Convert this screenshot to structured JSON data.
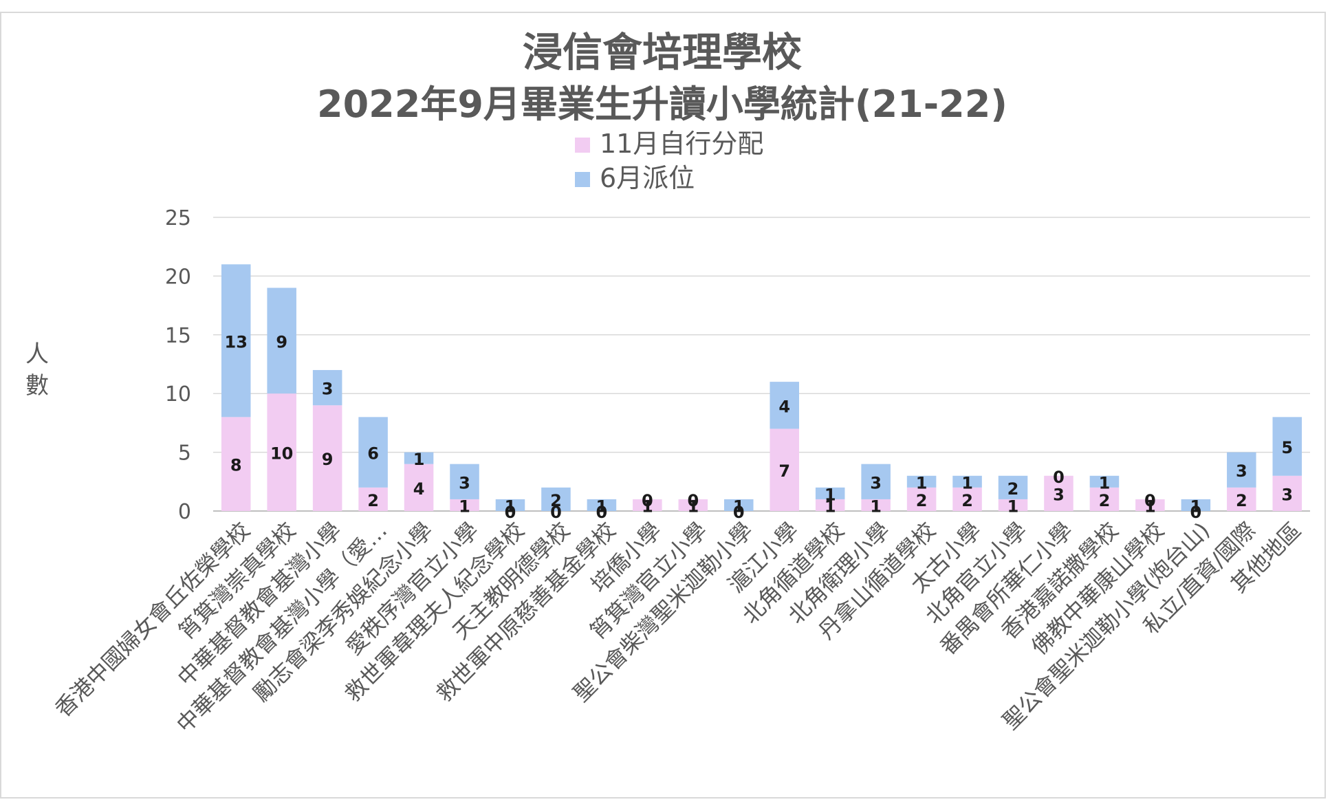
{
  "chart_data": {
    "type": "bar",
    "stacked": true,
    "title_line1": "浸信會培理學校",
    "title_line2": "2022年9月畢業生升讀小學統計(21-22)",
    "ylabel_chars": [
      "人",
      "數"
    ],
    "ylim": [
      0,
      25
    ],
    "yticks": [
      0,
      5,
      10,
      15,
      20,
      25
    ],
    "grid": true,
    "legend_position": "top",
    "categories": [
      "香港中國婦女會丘佐榮學校",
      "筲箕灣崇真學校",
      "中華基督教會基灣小學",
      "中華基督教會基灣小學（愛…",
      "勵志會梁李秀娛紀念小學",
      "愛秩序灣官立小學",
      "救世軍韋理夫人紀念學校",
      "天主教明德學校",
      "救世軍中原慈善基金學校",
      "培僑小學",
      "筲箕灣官立小學",
      "聖公會柴灣聖米迦勒小學",
      "滬江小學",
      "北角循道學校",
      "北角衛理小學",
      "丹拿山循道學校",
      "太古小學",
      "北角官立小學",
      "番禺會所華仁小學",
      "香港嘉諾撒學校",
      "佛教中華康山學校",
      "聖公會聖米迦勒小學(炮台山)",
      "私立/直資/國際",
      "其他地區"
    ],
    "series": [
      {
        "name": "11月自行分配",
        "color": "#f2ccf2",
        "values": [
          8,
          10,
          9,
          2,
          4,
          1,
          0,
          0,
          0,
          1,
          1,
          0,
          7,
          1,
          1,
          2,
          2,
          1,
          3,
          2,
          1,
          0,
          2,
          3
        ]
      },
      {
        "name": "6月派位",
        "color": "#a6c8f0",
        "values": [
          13,
          9,
          3,
          6,
          1,
          3,
          1,
          2,
          1,
          0,
          0,
          1,
          4,
          1,
          3,
          1,
          1,
          2,
          0,
          1,
          0,
          1,
          3,
          5
        ]
      }
    ]
  }
}
